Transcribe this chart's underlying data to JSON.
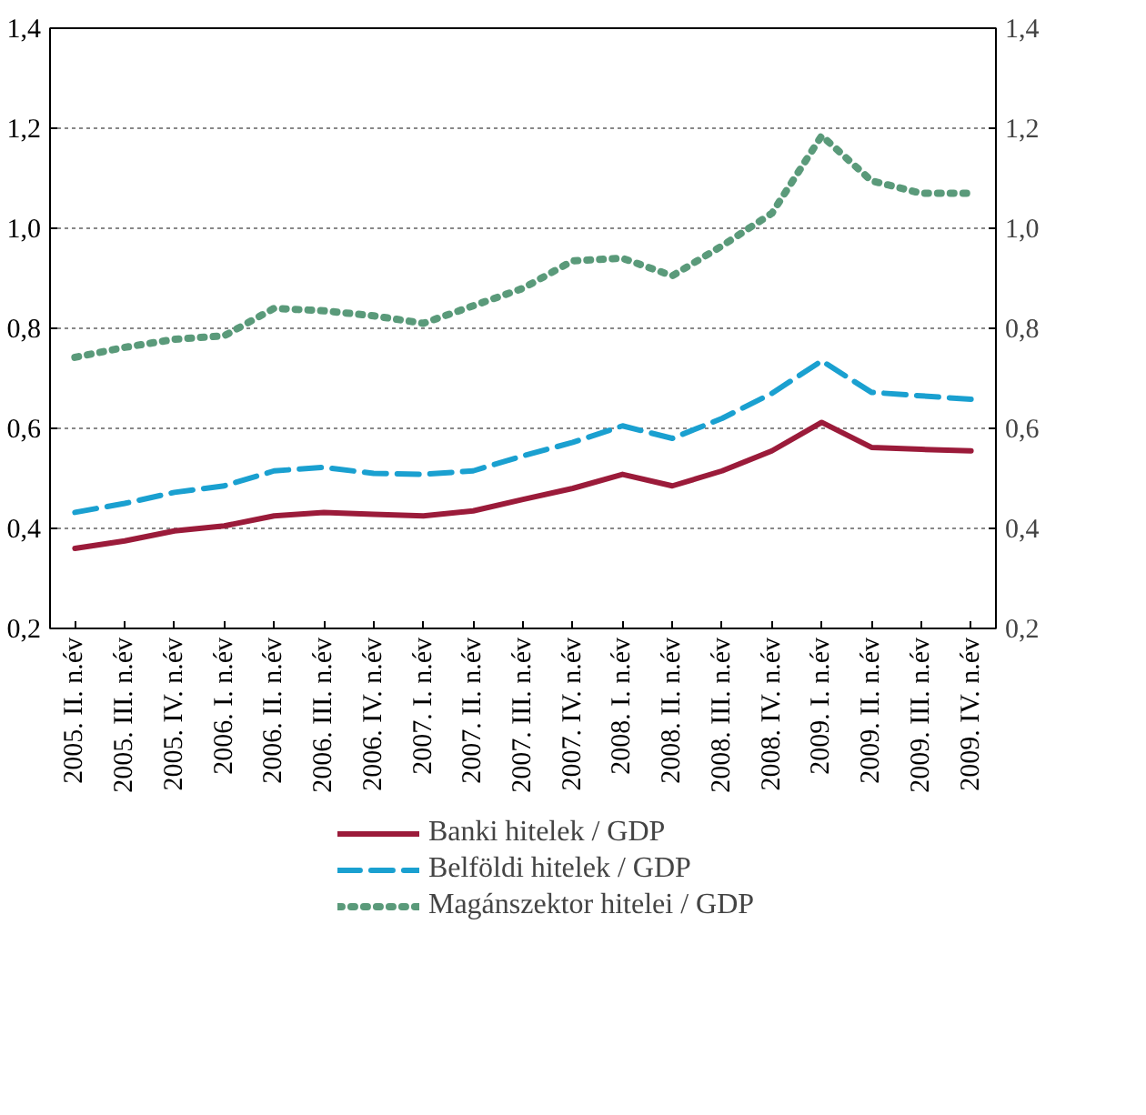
{
  "chart_data": {
    "type": "line",
    "categories": [
      "2005. II. n.év",
      "2005. III. n.év",
      "2005. IV. n.év",
      "2006. I. n.év",
      "2006. II. n.év",
      "2006. III. n.év",
      "2006. IV. n.év",
      "2007. I. n.év",
      "2007. II. n.év",
      "2007. III. n.év",
      "2007. IV. n.év",
      "2008. I. n.év",
      "2008. II. n.év",
      "2008. III. n.év",
      "2008. IV. n.év",
      "2009. I. n.év",
      "2009. II. n.év",
      "2009. III. n.év",
      "2009. IV. n.év"
    ],
    "series": [
      {
        "name": "Banki hitelek / GDP",
        "color": "#9b1b3a",
        "line_style": "solid",
        "values": [
          0.36,
          0.375,
          0.395,
          0.405,
          0.425,
          0.432,
          0.428,
          0.425,
          0.435,
          0.458,
          0.48,
          0.508,
          0.485,
          0.515,
          0.555,
          0.612,
          0.562,
          0.558,
          0.555
        ]
      },
      {
        "name": "Belföldi hitelek / GDP",
        "color": "#1aa0d0",
        "line_style": "dashed",
        "values": [
          0.432,
          0.45,
          0.472,
          0.485,
          0.515,
          0.522,
          0.51,
          0.508,
          0.515,
          0.545,
          0.572,
          0.605,
          0.58,
          0.62,
          0.67,
          0.735,
          0.672,
          0.665,
          0.658
        ]
      },
      {
        "name": "Magánszektor hitelei / GDP",
        "color": "#5a9a7a",
        "line_style": "dotted",
        "values": [
          0.742,
          0.762,
          0.778,
          0.785,
          0.84,
          0.835,
          0.825,
          0.81,
          0.845,
          0.88,
          0.935,
          0.94,
          0.905,
          0.965,
          1.03,
          1.185,
          1.095,
          1.07,
          1.07
        ]
      }
    ],
    "ylim": [
      0.2,
      1.4
    ],
    "yticks": [
      {
        "value": 0.2,
        "label": "0,2"
      },
      {
        "value": 0.4,
        "label": "0,4"
      },
      {
        "value": 0.6,
        "label": "0,6"
      },
      {
        "value": 0.8,
        "label": "0,8"
      },
      {
        "value": 1.0,
        "label": "1,0"
      },
      {
        "value": 1.2,
        "label": "1,2"
      },
      {
        "value": 1.4,
        "label": "1,4"
      }
    ],
    "y2lim": [
      0.2,
      1.4
    ],
    "y2ticks": [
      {
        "value": 0.2,
        "label": "0,2"
      },
      {
        "value": 0.4,
        "label": "0,4"
      },
      {
        "value": 0.6,
        "label": "0,6"
      },
      {
        "value": 0.8,
        "label": "0,8"
      },
      {
        "value": 1.0,
        "label": "1,0"
      },
      {
        "value": 1.2,
        "label": "1,2"
      },
      {
        "value": 1.4,
        "label": "1,4"
      }
    ],
    "grid": "y",
    "legend": "bottom",
    "marker": "none"
  }
}
